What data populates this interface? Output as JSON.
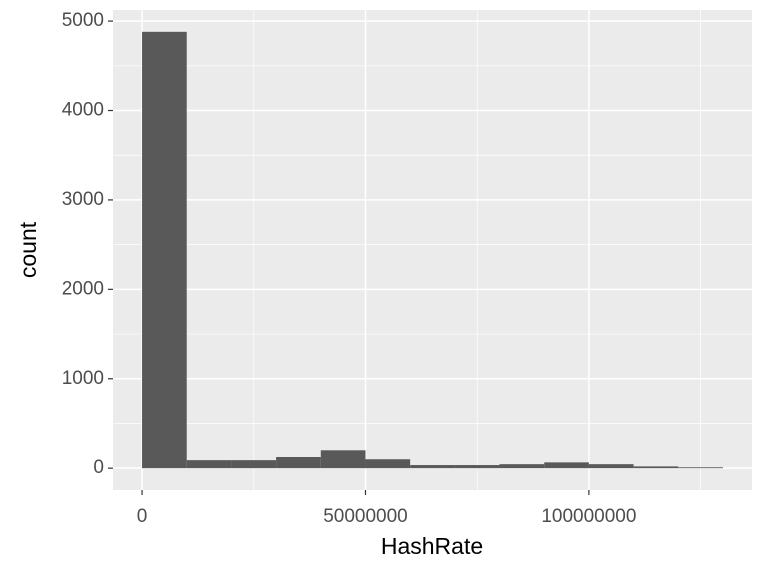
{
  "chart_data": {
    "type": "histogram",
    "x_label": "HashRate",
    "y_label": "count",
    "bins": [
      0,
      10000000,
      20000000,
      30000000,
      40000000,
      50000000,
      60000000,
      70000000,
      80000000,
      90000000,
      100000000,
      110000000,
      120000000,
      130000000
    ],
    "values": [
      4880,
      90,
      90,
      125,
      200,
      100,
      35,
      35,
      45,
      65,
      45,
      20,
      10
    ],
    "color": "#595959",
    "xlim": [
      -6500000,
      136500000
    ],
    "xticks": [
      0,
      50000000,
      100000000
    ],
    "minor_xticks": [
      25000000,
      75000000,
      125000000
    ],
    "ylim": [
      -244,
      5124
    ],
    "yticks": [
      0,
      1000,
      2000,
      3000,
      4000,
      5000
    ],
    "minor_yticks": [
      500,
      1500,
      2500,
      3500,
      4500
    ],
    "grid": true
  }
}
